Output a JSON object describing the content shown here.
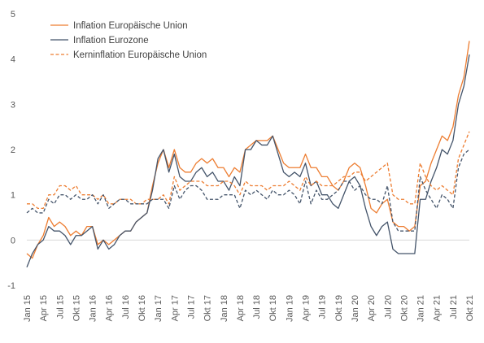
{
  "chart_data": {
    "type": "line",
    "title": "",
    "xlabel": "",
    "ylabel": "",
    "ylim": [
      -1,
      5
    ],
    "yticks": [
      -1,
      0,
      1,
      2,
      3,
      4,
      5
    ],
    "grid": false,
    "legend_position": "top-left",
    "x": [
      "Jan 15",
      "Feb 15",
      "Mär 15",
      "Apr 15",
      "Mai 15",
      "Jun 15",
      "Jul 15",
      "Aug 15",
      "Sep 15",
      "Okt 15",
      "Nov 15",
      "Dez 15",
      "Jan 16",
      "Feb 16",
      "Mär 16",
      "Apr 16",
      "Mai 16",
      "Jun 16",
      "Jul 16",
      "Aug 16",
      "Sep 16",
      "Okt 16",
      "Nov 16",
      "Dez 16",
      "Jan 17",
      "Feb 17",
      "Mär 17",
      "Apr 17",
      "Mai 17",
      "Jun 17",
      "Jul 17",
      "Aug 17",
      "Sep 17",
      "Okt 17",
      "Nov 17",
      "Dez 17",
      "Jan 18",
      "Feb 18",
      "Mär 18",
      "Apr 18",
      "Mai 18",
      "Jun 18",
      "Jul 18",
      "Aug 18",
      "Sep 18",
      "Okt 18",
      "Nov 18",
      "Dez 18",
      "Jan 19",
      "Feb 19",
      "Mär 19",
      "Apr 19",
      "Mai 19",
      "Jun 19",
      "Jul 19",
      "Aug 19",
      "Sep 19",
      "Okt 19",
      "Nov 19",
      "Dez 19",
      "Jan 20",
      "Feb 20",
      "Mär 20",
      "Apr 20",
      "Mai 20",
      "Jun 20",
      "Jul 20",
      "Aug 20",
      "Sep 20",
      "Okt 20",
      "Nov 20",
      "Dez 20",
      "Jan 21",
      "Feb 21",
      "Mär 21",
      "Apr 21",
      "Mai 21",
      "Jun 21",
      "Jul 21",
      "Aug 21",
      "Sep 21",
      "Okt 21"
    ],
    "xtick_labels": [
      "Jan 15",
      "Apr 15",
      "Jul 15",
      "Okt 15",
      "Jan 16",
      "Apr 16",
      "Jul 16",
      "Okt 16",
      "Jan 17",
      "Apr 17",
      "Jul 17",
      "Okt 17",
      "Jan 18",
      "Apr 18",
      "Jul 18",
      "Okt 18",
      "Jan 19",
      "Apr 19",
      "Jul 19",
      "Okt 19",
      "Jan 20",
      "Apr 20",
      "Jul 20",
      "Okt 20",
      "Jan 21",
      "Apr 21",
      "Jul 21",
      "Okt 21"
    ],
    "series": [
      {
        "name": "Inflation Europäische Union",
        "color": "#ED7D31",
        "dash": "solid",
        "values": [
          -0.3,
          -0.4,
          -0.1,
          0.1,
          0.5,
          0.3,
          0.4,
          0.3,
          0.1,
          0.2,
          0.1,
          0.3,
          0.3,
          -0.1,
          0.0,
          -0.1,
          0.0,
          0.1,
          0.2,
          0.2,
          0.4,
          0.5,
          0.6,
          1.2,
          1.7,
          2.0,
          1.6,
          2.0,
          1.6,
          1.5,
          1.5,
          1.7,
          1.8,
          1.7,
          1.8,
          1.6,
          1.6,
          1.4,
          1.6,
          1.5,
          2.0,
          2.1,
          2.2,
          2.2,
          2.2,
          2.3,
          2.0,
          1.7,
          1.6,
          1.6,
          1.6,
          1.9,
          1.6,
          1.6,
          1.4,
          1.4,
          1.2,
          1.1,
          1.3,
          1.6,
          1.7,
          1.6,
          1.2,
          0.7,
          0.6,
          0.8,
          0.9,
          0.4,
          0.3,
          0.3,
          0.2,
          0.3,
          1.2,
          1.3,
          1.7,
          2.0,
          2.3,
          2.2,
          2.5,
          3.2,
          3.6,
          4.4
        ]
      },
      {
        "name": "Inflation Eurozone",
        "color": "#44546A",
        "dash": "solid",
        "values": [
          -0.6,
          -0.3,
          -0.1,
          0.0,
          0.3,
          0.2,
          0.2,
          0.1,
          -0.1,
          0.1,
          0.1,
          0.2,
          0.3,
          -0.2,
          0.0,
          -0.2,
          -0.1,
          0.1,
          0.2,
          0.2,
          0.4,
          0.5,
          0.6,
          1.1,
          1.8,
          2.0,
          1.5,
          1.9,
          1.4,
          1.3,
          1.3,
          1.5,
          1.6,
          1.4,
          1.5,
          1.3,
          1.3,
          1.1,
          1.4,
          1.2,
          2.0,
          2.0,
          2.2,
          2.1,
          2.1,
          2.3,
          1.9,
          1.5,
          1.4,
          1.5,
          1.4,
          1.7,
          1.2,
          1.3,
          1.0,
          1.0,
          0.8,
          0.7,
          1.0,
          1.3,
          1.4,
          1.2,
          0.7,
          0.3,
          0.1,
          0.3,
          0.4,
          -0.2,
          -0.3,
          -0.3,
          -0.3,
          -0.3,
          0.9,
          0.9,
          1.3,
          1.6,
          2.0,
          1.9,
          2.2,
          3.0,
          3.4,
          4.1
        ]
      },
      {
        "name": "Kerninflation Europäische Union",
        "color": "#ED7D31",
        "dash": "dashed",
        "values": [
          0.8,
          0.8,
          0.7,
          0.7,
          1.0,
          1.0,
          1.2,
          1.2,
          1.1,
          1.2,
          1.0,
          1.0,
          1.0,
          0.9,
          1.0,
          0.8,
          0.8,
          0.9,
          0.9,
          0.9,
          0.8,
          0.8,
          0.9,
          0.9,
          0.9,
          1.0,
          0.8,
          1.4,
          1.1,
          1.2,
          1.3,
          1.3,
          1.3,
          1.2,
          1.2,
          1.2,
          1.3,
          1.3,
          1.2,
          1.0,
          1.3,
          1.2,
          1.2,
          1.2,
          1.1,
          1.2,
          1.2,
          1.2,
          1.3,
          1.2,
          1.1,
          1.4,
          1.2,
          1.3,
          1.2,
          1.2,
          1.2,
          1.3,
          1.4,
          1.4,
          1.5,
          1.5,
          1.3,
          1.4,
          1.5,
          1.6,
          1.7,
          1.0,
          0.9,
          0.9,
          0.8,
          0.8,
          1.7,
          1.4,
          1.2,
          1.1,
          1.2,
          1.1,
          1.0,
          1.8,
          2.1,
          2.4
        ]
      },
      {
        "name": "",
        "color": "#44546A",
        "dash": "dashed",
        "values": [
          0.6,
          0.7,
          0.6,
          0.6,
          0.9,
          0.8,
          1.0,
          1.0,
          0.9,
          1.0,
          0.9,
          0.9,
          1.0,
          0.8,
          1.0,
          0.7,
          0.8,
          0.9,
          0.9,
          0.8,
          0.8,
          0.8,
          0.8,
          0.9,
          0.9,
          0.9,
          0.7,
          1.2,
          0.9,
          1.1,
          1.2,
          1.2,
          1.1,
          0.9,
          0.9,
          0.9,
          1.0,
          1.0,
          1.0,
          0.7,
          1.1,
          1.0,
          1.1,
          1.0,
          0.9,
          1.1,
          1.0,
          1.0,
          1.1,
          1.0,
          0.8,
          1.3,
          0.8,
          1.1,
          0.9,
          0.9,
          1.0,
          1.1,
          1.3,
          1.3,
          1.1,
          1.2,
          1.0,
          0.9,
          0.9,
          0.8,
          1.2,
          0.4,
          0.2,
          0.2,
          0.2,
          0.2,
          1.4,
          1.1,
          0.9,
          0.7,
          1.0,
          0.9,
          0.7,
          1.6,
          1.9,
          2.0
        ]
      }
    ]
  }
}
